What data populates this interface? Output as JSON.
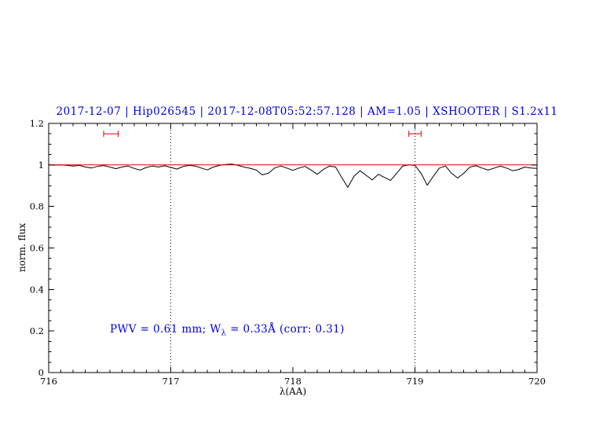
{
  "header": {
    "title": "2017-12-07 | Hip026545 | 2017-12-08T05:52:57.128 | AM=1.05 | XSHOOTER | S1.2x11"
  },
  "annotation": {
    "prefix": "PWV = 0.61 mm; W",
    "subscript": "λ",
    "suffix": " = 0.33Å (corr: 0.31)"
  },
  "axes": {
    "xlabel": "λ(AA)",
    "ylabel": "norm. flux"
  },
  "colors": {
    "title_text": "#0000dd",
    "annotation_text": "#0000dd",
    "continuum": "#dd0000",
    "error_marker": "#dd0000",
    "spectrum": "#000000",
    "axis": "#000000"
  },
  "chart_data": {
    "type": "line",
    "title": "2017-12-07 | Hip026545 | 2017-12-08T05:52:57.128 | AM=1.05 | XSHOOTER | S1.2x11",
    "xlabel": "λ(AA)",
    "ylabel": "norm. flux",
    "xlim": [
      716,
      720
    ],
    "ylim": [
      0,
      1.2
    ],
    "x_ticks": [
      716,
      717,
      718,
      719,
      720
    ],
    "x_tick_labels": [
      "716",
      "717",
      "718",
      "719",
      "720"
    ],
    "x_minor_tick_step": 0.1,
    "y_ticks": [
      0,
      0.2,
      0.4,
      0.6,
      0.8,
      1,
      1.2
    ],
    "y_tick_labels": [
      "0",
      "0.2",
      "0.4",
      "0.6",
      "0.8",
      "1",
      "1.2"
    ],
    "y_minor_tick_step": 0.05,
    "grid": "off",
    "legend": "none",
    "vlines": {
      "x": [
        717,
        719
      ],
      "style": "dotted",
      "color": "#000000"
    },
    "series": [
      {
        "name": "normalized spectrum",
        "color": "#000000",
        "x_start": 716.0,
        "x_step": 0.05,
        "y": [
          1.0,
          0.999,
          1.0,
          0.998,
          0.995,
          0.998,
          0.99,
          0.985,
          0.993,
          0.997,
          0.99,
          0.982,
          0.99,
          0.995,
          0.983,
          0.975,
          0.988,
          0.995,
          0.99,
          0.996,
          0.988,
          0.98,
          0.992,
          0.998,
          0.995,
          0.985,
          0.976,
          0.99,
          0.998,
          1.002,
          1.004,
          0.998,
          0.99,
          0.984,
          0.975,
          0.952,
          0.96,
          0.985,
          0.995,
          0.985,
          0.974,
          0.985,
          0.993,
          0.975,
          0.955,
          0.978,
          0.995,
          0.99,
          0.94,
          0.892,
          0.945,
          0.972,
          0.95,
          0.928,
          0.955,
          0.94,
          0.925,
          0.96,
          0.995,
          1.0,
          0.998,
          0.96,
          0.902,
          0.945,
          0.985,
          0.995,
          0.96,
          0.937,
          0.96,
          0.99,
          0.996,
          0.985,
          0.975,
          0.985,
          0.994,
          0.985,
          0.972,
          0.978,
          0.99,
          0.985,
          0.983
        ]
      },
      {
        "name": "continuum",
        "color": "#dd0000",
        "x": [
          716,
          720
        ],
        "y": [
          1,
          1
        ]
      }
    ],
    "error_markers": [
      {
        "x": 716.51,
        "y": 1.15,
        "half_width": 0.06,
        "color": "#dd0000"
      },
      {
        "x": 719.0,
        "y": 1.15,
        "half_width": 0.05,
        "color": "#dd0000"
      }
    ]
  }
}
